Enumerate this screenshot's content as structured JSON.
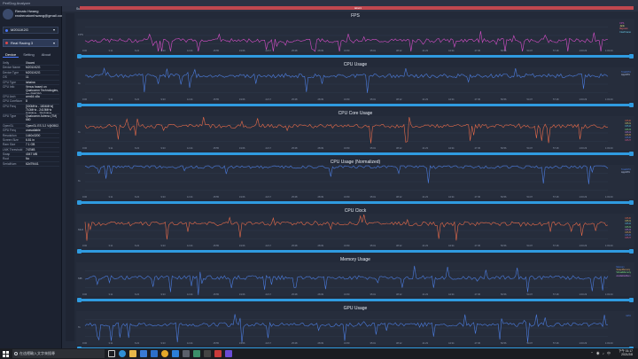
{
  "window": {
    "title": "PerfDog Analyzer"
  },
  "account": {
    "name": "Renato Hwang",
    "email": "realrenatomhwang@gmail.com"
  },
  "device_select": {
    "label": "M2011K2G"
  },
  "app_select": {
    "label": "Real Racing 3"
  },
  "tabs": [
    {
      "label": "Device"
    },
    {
      "label": "Setting"
    },
    {
      "label": "About"
    }
  ],
  "info": [
    {
      "k": "Xelly",
      "v": "Xiaomi"
    },
    {
      "k": "Device Name",
      "v": "M2011K2G"
    },
    {
      "k": "Device Type",
      "v": "M2011K2G"
    },
    {
      "k": "OS",
      "v": "11"
    },
    {
      "k": "CPU Type",
      "v": "lahaina"
    },
    {
      "k": "CPU Info",
      "v": "Venus based on Qualcomm Technologies, Inc SM8350",
      "tall": true
    },
    {
      "k": "CPU Arch",
      "v": "arm64-v8a"
    },
    {
      "k": "CPU CoreNum",
      "v": "8"
    },
    {
      "k": "CPU Freq",
      "v": "[300MHz - 1804MHz] 710MHz - 2419MHz 844MHz - 2841MHz",
      "tall": true
    },
    {
      "k": "GPU Type",
      "v": "Qualcomm Adreno (TM) 660",
      "tall": true
    },
    {
      "k": "OpenGL",
      "v": "OpenGL ES 3.2 V@0502.0 ..."
    },
    {
      "k": "GPU Freq",
      "v": "unavailable"
    },
    {
      "k": "Resolution",
      "v": "1440x3200"
    },
    {
      "k": "Screen Size",
      "v": "6.81 in"
    },
    {
      "k": "Ram Size",
      "v": "7.1 GB"
    },
    {
      "k": "LMK Threshold",
      "v": "747MB"
    },
    {
      "k": "Swap",
      "v": "4047 MB"
    },
    {
      "k": "Root",
      "v": "No"
    },
    {
      "k": "SerialNum",
      "v": "62d79441"
    }
  ],
  "main": {
    "subtab": "Subtitle",
    "banner": "label1"
  },
  "panels": [
    {
      "title": "FPS",
      "line": "#d64fc9",
      "legend": [
        "FPS",
        "Jank",
        "BigJank",
        "InterFrame"
      ],
      "legend_colors": [
        "#d64fc9",
        "#e7e77a",
        "#f06b6b",
        "#6ad1f0"
      ],
      "ylabel": "FPS"
    },
    {
      "title": "CPU Usage",
      "line": "#4c7de0",
      "legend": [
        "TotalCPU",
        "AppCPU"
      ],
      "legend_colors": [
        "#4c7de0",
        "#b9c6e8"
      ],
      "ylabel": "%"
    },
    {
      "title": "CPU Core Usage",
      "line": "#e86b4a",
      "legend": [
        "CPU0",
        "CPU1",
        "CPU2",
        "CPU3",
        "CPU4",
        "CPU5",
        "CPU6",
        "CPU7"
      ],
      "legend_colors": [
        "#e86b4a",
        "#d9d36b",
        "#5bc4e0",
        "#7ee07e",
        "#c47ee0",
        "#e0a65b",
        "#5b7de0",
        "#e05b8c"
      ],
      "ylabel": "%"
    },
    {
      "title": "CPU Usage (Normalized)",
      "line": "#4c7de0",
      "legend": [
        "TotalCPU",
        "AppCPU"
      ],
      "legend_colors": [
        "#4c7de0",
        "#b9c6e8"
      ],
      "ylabel": "%"
    },
    {
      "title": "CPU Clock",
      "line": "#e86b4a",
      "legend": [
        "CPU0",
        "CPU1",
        "CPU2",
        "CPU3",
        "CPU4",
        "CPU5",
        "CPU6",
        "CPU7"
      ],
      "legend_colors": [
        "#e86b4a",
        "#d9d36b",
        "#5bc4e0",
        "#7ee07e",
        "#c47ee0",
        "#e0a65b",
        "#5b7de0",
        "#e05b8c"
      ],
      "ylabel": "MHz"
    },
    {
      "title": "Memory Usage",
      "line": "#4c7de0",
      "legend": [
        "Memory",
        "SwapMemory",
        "VirtualMemory",
        "AvailableMem"
      ],
      "legend_colors": [
        "#4c7de0",
        "#e0a65b",
        "#7ee07e",
        "#c47ee0"
      ],
      "ylabel": "MB"
    },
    {
      "title": "GPU Usage",
      "line": "#4c7de0",
      "legend": [
        "GPU"
      ],
      "legend_colors": [
        "#4c7de0"
      ],
      "ylabel": "%"
    }
  ],
  "x_ticks": [
    "0:00",
    "3:11",
    "6:22",
    "9:33",
    "12:44",
    "15:55",
    "19:06",
    "22:17",
    "25:28",
    "28:39",
    "31:50",
    "35:01",
    "38:12",
    "41:23",
    "44:34",
    "47:45",
    "50:56",
    "54:07",
    "57:18",
    "1:00:29",
    "1:03:40"
  ],
  "taskbar": {
    "search_placeholder": "在這裡輸入文字來搜尋",
    "time": "下午 01:17",
    "date": "2021/2/8"
  }
}
